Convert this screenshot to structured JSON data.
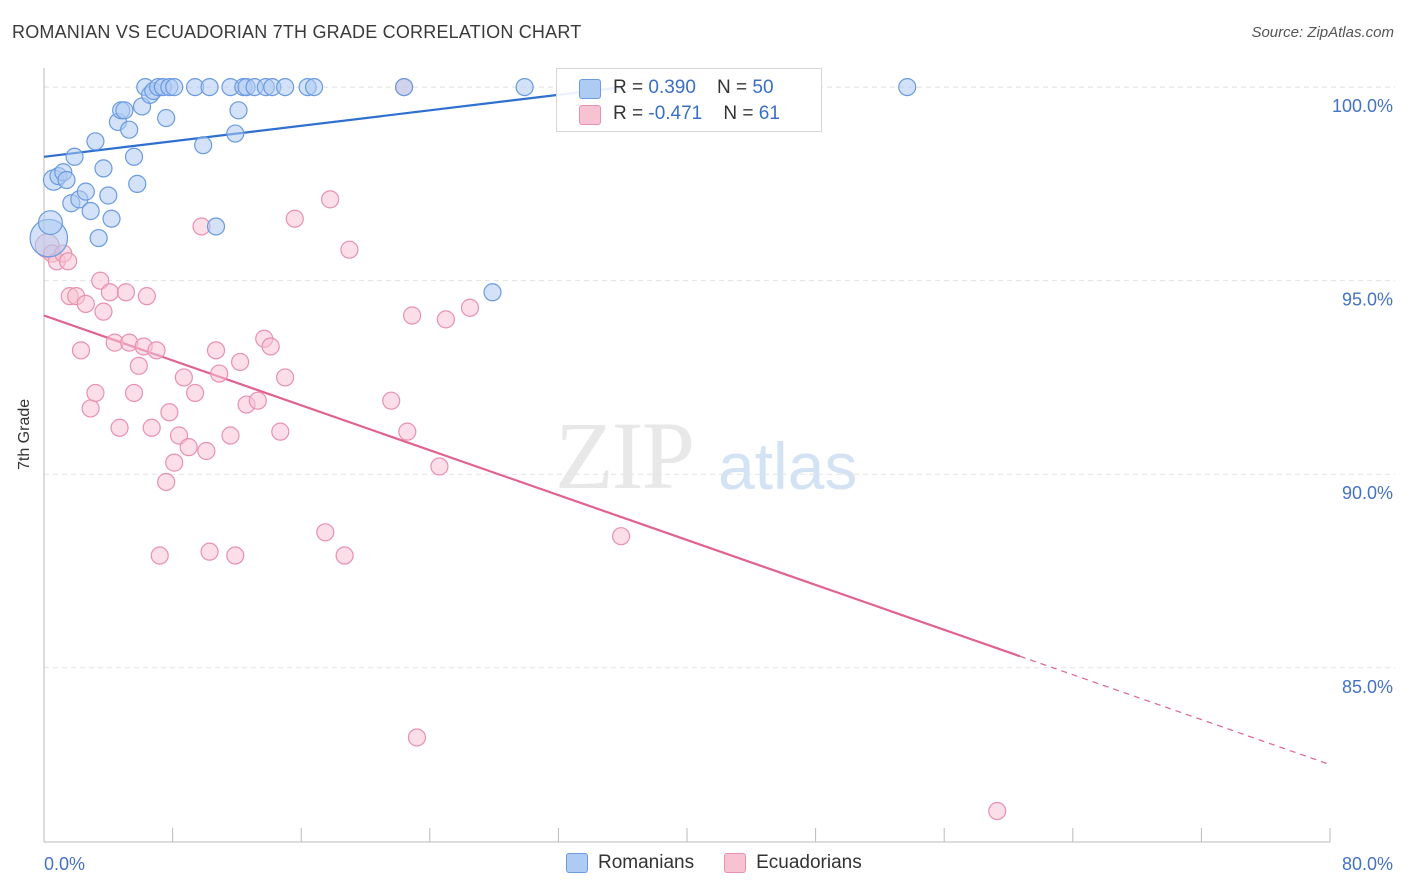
{
  "title": "ROMANIAN VS ECUADORIAN 7TH GRADE CORRELATION CHART",
  "source": "Source: ZipAtlas.com",
  "watermark": {
    "zip": "ZIP",
    "atlas": "atlas"
  },
  "legend": {
    "romanians": {
      "r_label": "R = ",
      "r_value": "0.390",
      "n_label": "N = ",
      "n_value": "50"
    },
    "ecuadorians": {
      "r_label": "R = ",
      "r_value": "-0.471",
      "n_label": "N = ",
      "n_value": "61"
    }
  },
  "bottom_legend": {
    "romanians": "Romanians",
    "ecuadorians": "Ecuadorians"
  },
  "colors": {
    "romanians_fill": "#aecbf3",
    "romanians_stroke": "#6a9be0",
    "romanians_line": "#2e6fd0",
    "ecuadorians_fill": "#f7c3d3",
    "ecuadorians_stroke": "#e891ae",
    "ecuadorians_line": "#e0638f",
    "grid": "#e3e3e3",
    "tick_text": "#4472c4"
  },
  "chart_data": {
    "type": "scatter",
    "title": "ROMANIAN VS ECUADORIAN 7TH GRADE CORRELATION CHART",
    "xlabel": "",
    "ylabel": "7th Grade",
    "xlim": [
      0,
      80
    ],
    "ylim": [
      80.5,
      100.7
    ],
    "x_tick_labels": [
      "0.0%",
      "80.0%"
    ],
    "y_ticks": [
      85,
      90,
      95,
      100
    ],
    "y_tick_labels": [
      "85.0%",
      "90.0%",
      "95.0%",
      "100.0%"
    ],
    "series": [
      {
        "name": "Romanians",
        "r": 0.39,
        "n": 50,
        "trend": {
          "x0": 0,
          "y0": 98.2,
          "x1": 36,
          "y1": 100.0,
          "dashed_to": null
        },
        "points": [
          [
            0.3,
            96.1,
            2.2
          ],
          [
            0.4,
            96.5,
            1.4
          ],
          [
            0.6,
            97.6,
            1.2
          ],
          [
            0.9,
            97.7,
            1.0
          ],
          [
            1.2,
            97.8,
            1.0
          ],
          [
            1.4,
            97.6,
            1.0
          ],
          [
            1.7,
            97.0,
            1.0
          ],
          [
            1.9,
            98.2,
            1.0
          ],
          [
            2.2,
            97.1,
            1.0
          ],
          [
            2.6,
            97.3,
            1.0
          ],
          [
            2.9,
            96.8,
            1.0
          ],
          [
            3.2,
            98.6,
            1.0
          ],
          [
            3.4,
            96.1,
            1.0
          ],
          [
            3.7,
            97.9,
            1.0
          ],
          [
            4.0,
            97.2,
            1.0
          ],
          [
            4.2,
            96.6,
            1.0
          ],
          [
            4.6,
            99.1,
            1.0
          ],
          [
            4.8,
            99.4,
            1.0
          ],
          [
            5.0,
            99.4,
            1.0
          ],
          [
            5.3,
            98.9,
            1.0
          ],
          [
            5.6,
            98.2,
            1.0
          ],
          [
            5.8,
            97.5,
            1.0
          ],
          [
            6.1,
            99.5,
            1.0
          ],
          [
            6.3,
            100.0,
            1.0
          ],
          [
            6.6,
            99.8,
            1.0
          ],
          [
            6.8,
            99.9,
            1.0
          ],
          [
            7.1,
            100.0,
            1.0
          ],
          [
            7.4,
            100.0,
            1.0
          ],
          [
            7.6,
            99.2,
            1.0
          ],
          [
            7.8,
            100.0,
            1.0
          ],
          [
            8.1,
            100.0,
            1.0
          ],
          [
            9.4,
            100.0,
            1.0
          ],
          [
            9.9,
            98.5,
            1.0
          ],
          [
            10.3,
            100.0,
            1.0
          ],
          [
            10.7,
            96.4,
            1.0
          ],
          [
            11.6,
            100.0,
            1.0
          ],
          [
            11.9,
            98.8,
            1.0
          ],
          [
            12.1,
            99.4,
            1.0
          ],
          [
            12.4,
            100.0,
            1.0
          ],
          [
            12.6,
            100.0,
            1.0
          ],
          [
            13.1,
            100.0,
            1.0
          ],
          [
            13.8,
            100.0,
            1.0
          ],
          [
            14.2,
            100.0,
            1.0
          ],
          [
            15.0,
            100.0,
            1.0
          ],
          [
            16.4,
            100.0,
            1.0
          ],
          [
            16.8,
            100.0,
            1.0
          ],
          [
            22.4,
            100.0,
            1.0
          ],
          [
            27.9,
            94.7,
            1.0
          ],
          [
            29.9,
            100.0,
            1.0
          ],
          [
            53.7,
            100.0,
            1.0
          ]
        ]
      },
      {
        "name": "Ecuadorians",
        "r": -0.471,
        "n": 61,
        "trend": {
          "x0": 0,
          "y0": 94.1,
          "x1": 60.7,
          "y1": 85.3,
          "dashed_x1": 80,
          "dashed_y1": 82.5
        },
        "points": [
          [
            0.2,
            95.9,
            1.4
          ],
          [
            0.5,
            95.7,
            1.0
          ],
          [
            0.8,
            95.5,
            1.0
          ],
          [
            1.2,
            95.7,
            1.0
          ],
          [
            1.5,
            95.5,
            1.0
          ],
          [
            1.6,
            94.6,
            1.0
          ],
          [
            2.0,
            94.6,
            1.0
          ],
          [
            2.3,
            93.2,
            1.0
          ],
          [
            2.6,
            94.4,
            1.0
          ],
          [
            2.9,
            91.7,
            1.0
          ],
          [
            3.2,
            92.1,
            1.0
          ],
          [
            3.5,
            95.0,
            1.0
          ],
          [
            3.7,
            94.2,
            1.0
          ],
          [
            4.1,
            94.7,
            1.0
          ],
          [
            4.4,
            93.4,
            1.0
          ],
          [
            4.7,
            91.2,
            1.0
          ],
          [
            5.1,
            94.7,
            1.0
          ],
          [
            5.3,
            93.4,
            1.0
          ],
          [
            5.6,
            92.1,
            1.0
          ],
          [
            5.9,
            92.8,
            1.0
          ],
          [
            6.2,
            93.3,
            1.0
          ],
          [
            6.4,
            94.6,
            1.0
          ],
          [
            6.7,
            91.2,
            1.0
          ],
          [
            7.0,
            93.2,
            1.0
          ],
          [
            7.2,
            87.9,
            1.0
          ],
          [
            7.6,
            89.8,
            1.0
          ],
          [
            7.8,
            91.6,
            1.0
          ],
          [
            8.1,
            90.3,
            1.0
          ],
          [
            8.4,
            91.0,
            1.0
          ],
          [
            8.7,
            92.5,
            1.0
          ],
          [
            9.0,
            90.7,
            1.0
          ],
          [
            9.4,
            92.1,
            1.0
          ],
          [
            9.8,
            96.4,
            1.0
          ],
          [
            10.1,
            90.6,
            1.0
          ],
          [
            10.3,
            88.0,
            1.0
          ],
          [
            10.7,
            93.2,
            1.0
          ],
          [
            10.9,
            92.6,
            1.0
          ],
          [
            11.6,
            91.0,
            1.0
          ],
          [
            11.9,
            87.9,
            1.0
          ],
          [
            12.2,
            92.9,
            1.0
          ],
          [
            12.6,
            91.8,
            1.0
          ],
          [
            13.3,
            91.9,
            1.0
          ],
          [
            13.7,
            93.5,
            1.0
          ],
          [
            14.1,
            93.3,
            1.0
          ],
          [
            14.7,
            91.1,
            1.0
          ],
          [
            15.0,
            92.5,
            1.0
          ],
          [
            15.6,
            96.6,
            1.0
          ],
          [
            17.5,
            88.5,
            1.0
          ],
          [
            17.8,
            97.1,
            1.0
          ],
          [
            18.7,
            87.9,
            1.0
          ],
          [
            19.0,
            95.8,
            1.0
          ],
          [
            21.6,
            91.9,
            1.0
          ],
          [
            22.4,
            100.0,
            1.0
          ],
          [
            22.6,
            91.1,
            1.0
          ],
          [
            22.9,
            94.1,
            1.0
          ],
          [
            23.2,
            83.2,
            1.0
          ],
          [
            24.6,
            90.2,
            1.0
          ],
          [
            25.0,
            94.0,
            1.0
          ],
          [
            26.5,
            94.3,
            1.0
          ],
          [
            35.9,
            88.4,
            1.0
          ],
          [
            59.3,
            81.3,
            1.0
          ]
        ]
      }
    ]
  }
}
